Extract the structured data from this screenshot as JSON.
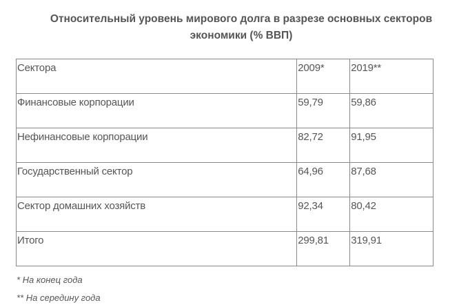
{
  "title": "Относительный уровень мирового долга в разрезе основных секторов экономики (% ВВП)",
  "table": {
    "headers": [
      "Сектора",
      "2009*",
      "2019**"
    ],
    "rows": [
      [
        "Финансовые корпорации",
        "59,79",
        "59,86"
      ],
      [
        "Нефинансовые корпорации",
        "82,72",
        "91,95"
      ],
      [
        "Государственный сектор",
        "64,96",
        "87,68"
      ],
      [
        "Сектор домашних хозяйств",
        "92,34",
        "80,42"
      ],
      [
        "Итого",
        "299,81",
        "319,91"
      ]
    ]
  },
  "footnotes": [
    "* На конец года",
    "** На середину года"
  ]
}
